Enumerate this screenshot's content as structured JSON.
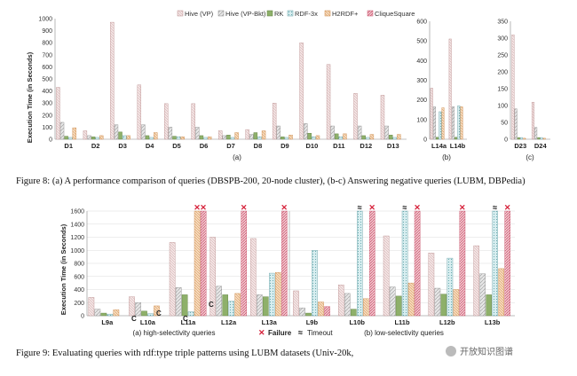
{
  "figure8": {
    "legend": [
      "Hive (VP)",
      "Hive (VP-Bkt)",
      "RK",
      "RDF-3x",
      "H2RDF+",
      "CliqueSquare"
    ],
    "ylabel": "Execution Time (in Seconds)",
    "panel_a": {
      "label": "(a)",
      "categories": [
        "D1",
        "D2",
        "D3",
        "D4",
        "D5",
        "D6",
        "D7",
        "D8",
        "D9",
        "D10",
        "D11",
        "D12",
        "D13"
      ],
      "yticks": [
        "0",
        "100",
        "200",
        "300",
        "400",
        "500",
        "600",
        "700",
        "800",
        "900",
        "1000"
      ]
    },
    "panel_b": {
      "label": "(b)",
      "categories": [
        "L14a",
        "L14b"
      ],
      "yticks": [
        "0",
        "100",
        "200",
        "300",
        "400",
        "500",
        "600"
      ]
    },
    "panel_c": {
      "label": "(c)",
      "categories": [
        "D23",
        "D24"
      ],
      "yticks": [
        "0",
        "50",
        "100",
        "150",
        "200",
        "250",
        "300",
        "350"
      ]
    },
    "caption": "Figure 8: (a) A performance comparison of queries (DBSPB-200, 20-node cluster), (b-c) Answering negative queries (LUBM, DBPedia)"
  },
  "figure9": {
    "ylabel": "Execution Time (in Seconds)",
    "yticks": [
      "0",
      "200",
      "400",
      "600",
      "800",
      "1000",
      "1200",
      "1400",
      "1600"
    ],
    "left_categories": [
      "L9a",
      "L10a",
      "L11a",
      "L12a",
      "L13a"
    ],
    "right_categories": [
      "L9b",
      "L10b",
      "L11b",
      "L12b",
      "L13b"
    ],
    "left_label": "(a) high-selectivity queries",
    "right_label": "(b) low-selectivity queries",
    "failure_label": "Failure",
    "timeout_label": "Timeout",
    "c_mark": "C",
    "x_mark": "✕",
    "break_mark": "≈",
    "caption": "Figure 9: Evaluating queries with rdf:type triple patterns using LUBM datasets (Univ-20k,",
    "watermark": "开放知识图谱"
  },
  "chart_data": [
    {
      "type": "bar",
      "categories": [
        "D1",
        "D2",
        "D3",
        "D4",
        "D5",
        "D6",
        "D7",
        "D8",
        "D9",
        "D10",
        "D11",
        "D12",
        "D13"
      ],
      "ylim": [
        0,
        1000
      ],
      "series": [
        {
          "name": "Hive (VP)",
          "values": [
            430,
            70,
            970,
            450,
            295,
            295,
            70,
            80,
            300,
            800,
            620,
            380,
            365
          ]
        },
        {
          "name": "Hive (VP-Bkt)",
          "values": [
            140,
            30,
            120,
            120,
            100,
            100,
            30,
            40,
            110,
            130,
            110,
            110,
            110
          ]
        },
        {
          "name": "RK",
          "values": [
            25,
            20,
            60,
            30,
            25,
            30,
            35,
            55,
            20,
            50,
            45,
            30,
            35
          ]
        },
        {
          "name": "RDF-3x",
          "values": [
            15,
            15,
            30,
            15,
            20,
            15,
            15,
            20,
            15,
            20,
            20,
            15,
            15
          ]
        },
        {
          "name": "H2RDF+",
          "values": [
            95,
            30,
            30,
            55,
            20,
            20,
            55,
            70,
            35,
            30,
            45,
            40,
            40
          ]
        },
        {
          "name": "CliqueSquare",
          "values": [
            0,
            0,
            0,
            0,
            0,
            0,
            0,
            0,
            0,
            0,
            0,
            0,
            0
          ]
        }
      ]
    },
    {
      "type": "bar",
      "categories": [
        "L14a",
        "L14b"
      ],
      "ylim": [
        0,
        600
      ],
      "series": [
        {
          "name": "Hive (VP)",
          "values": [
            260,
            510
          ]
        },
        {
          "name": "Hive (VP-Bkt)",
          "values": [
            165,
            165
          ]
        },
        {
          "name": "RK",
          "values": [
            10,
            10
          ]
        },
        {
          "name": "RDF-3x",
          "values": [
            140,
            170
          ]
        },
        {
          "name": "H2RDF+",
          "values": [
            160,
            165
          ]
        },
        {
          "name": "CliqueSquare",
          "values": [
            0,
            0
          ]
        }
      ]
    },
    {
      "type": "bar",
      "categories": [
        "D23",
        "D24"
      ],
      "ylim": [
        0,
        350
      ],
      "series": [
        {
          "name": "Hive (VP)",
          "values": [
            310,
            110
          ]
        },
        {
          "name": "Hive (VP-Bkt)",
          "values": [
            90,
            35
          ]
        },
        {
          "name": "RK",
          "values": [
            5,
            5
          ]
        },
        {
          "name": "RDF-3x",
          "values": [
            5,
            5
          ]
        },
        {
          "name": "H2RDF+",
          "values": [
            3,
            3
          ]
        },
        {
          "name": "CliqueSquare",
          "values": [
            0,
            0
          ]
        }
      ]
    },
    {
      "type": "bar",
      "categories": [
        "L9a",
        "L10a",
        "L11a",
        "L12a",
        "L13a"
      ],
      "ylim": [
        0,
        1600
      ],
      "series": [
        {
          "values": [
            280,
            290,
            1120,
            1200,
            1180
          ]
        },
        {
          "values": [
            100,
            200,
            430,
            450,
            320
          ]
        },
        {
          "values": [
            40,
            70,
            320,
            320,
            290
          ]
        },
        {
          "values": [
            25,
            30,
            60,
            220,
            650
          ]
        },
        {
          "values": [
            90,
            150,
            1600,
            340,
            660
          ]
        },
        {
          "values": [
            0,
            0,
            1600,
            1600,
            1600
          ]
        }
      ]
    },
    {
      "type": "bar",
      "categories": [
        "L9b",
        "L10b",
        "L11b",
        "L12b",
        "L13b"
      ],
      "ylim": [
        0,
        1600
      ],
      "series": [
        {
          "values": [
            380,
            470,
            1220,
            960,
            1070
          ]
        },
        {
          "values": [
            120,
            340,
            440,
            420,
            640
          ]
        },
        {
          "values": [
            40,
            100,
            300,
            330,
            320
          ]
        },
        {
          "values": [
            1000,
            1600,
            1600,
            880,
            1600
          ]
        },
        {
          "values": [
            210,
            260,
            500,
            400,
            720
          ]
        },
        {
          "values": [
            140,
            1600,
            1600,
            1600,
            1600
          ]
        }
      ]
    }
  ]
}
